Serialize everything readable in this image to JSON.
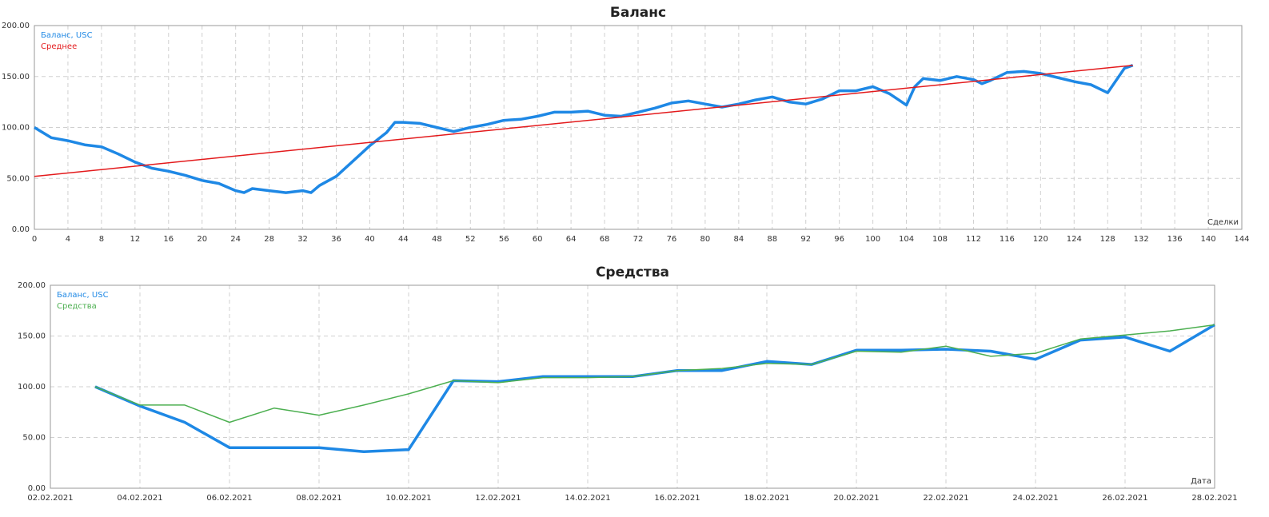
{
  "chart_data": [
    {
      "type": "line",
      "title": "Баланс",
      "x_label": "Сделки",
      "grid": true,
      "legend": "upper left",
      "xlim": [
        0,
        144
      ],
      "xticks": [
        0,
        4,
        8,
        12,
        16,
        20,
        24,
        28,
        32,
        36,
        40,
        44,
        48,
        52,
        56,
        60,
        64,
        68,
        72,
        76,
        80,
        84,
        88,
        92,
        96,
        100,
        104,
        108,
        112,
        116,
        120,
        124,
        128,
        132,
        136,
        140,
        144
      ],
      "ylim": [
        0,
        200
      ],
      "yticks": [
        {
          "value": 0,
          "label": "0.00"
        },
        {
          "value": 50,
          "label": "50.00"
        },
        {
          "value": 100,
          "label": "100.00"
        },
        {
          "value": 150,
          "label": "150.00"
        },
        {
          "value": 200,
          "label": "200.00"
        }
      ],
      "series": [
        {
          "name": "Баланс, USC",
          "color": "#1e88e5",
          "width": 3.5,
          "x": [
            0,
            1,
            2,
            4,
            6,
            8,
            10,
            12,
            14,
            16,
            18,
            20,
            22,
            24,
            25,
            26,
            28,
            30,
            32,
            33,
            34,
            36,
            38,
            40,
            42,
            43,
            44,
            46,
            48,
            50,
            52,
            54,
            56,
            58,
            60,
            62,
            64,
            66,
            68,
            70,
            72,
            74,
            76,
            78,
            80,
            82,
            84,
            86,
            88,
            90,
            92,
            94,
            96,
            98,
            100,
            102,
            104,
            105,
            106,
            108,
            110,
            112,
            113,
            114,
            116,
            118,
            120,
            122,
            124,
            126,
            128,
            130,
            131
          ],
          "values": [
            100,
            95,
            90,
            87,
            83,
            81,
            74,
            66,
            60,
            57,
            53,
            48,
            45,
            38,
            36,
            40,
            38,
            36,
            38,
            36,
            43,
            52,
            67,
            82,
            95,
            105,
            105,
            104,
            100,
            96,
            100,
            103,
            107,
            108,
            111,
            115,
            115,
            116,
            112,
            111,
            115,
            119,
            124,
            126,
            123,
            120,
            123,
            127,
            130,
            125,
            123,
            128,
            136,
            136,
            140,
            133,
            122,
            140,
            148,
            146,
            150,
            147,
            143,
            146,
            154,
            155,
            153,
            149,
            145,
            142,
            134,
            158,
            161
          ]
        },
        {
          "name": "Среднее",
          "color": "#e31a1c",
          "width": 1.5,
          "x": [
            0,
            131
          ],
          "values": [
            52,
            161
          ]
        }
      ]
    },
    {
      "type": "line",
      "title": "Средства",
      "x_label": "Дата",
      "grid": true,
      "legend": "upper left",
      "xlim": [
        "2021-02-02",
        "2021-02-28"
      ],
      "xticks": [
        {
          "value": "2021-02-02",
          "label": "02.02.2021"
        },
        {
          "value": "2021-02-04",
          "label": "04.02.2021"
        },
        {
          "value": "2021-02-06",
          "label": "06.02.2021"
        },
        {
          "value": "2021-02-08",
          "label": "08.02.2021"
        },
        {
          "value": "2021-02-10",
          "label": "10.02.2021"
        },
        {
          "value": "2021-02-12",
          "label": "12.02.2021"
        },
        {
          "value": "2021-02-14",
          "label": "14.02.2021"
        },
        {
          "value": "2021-02-16",
          "label": "16.02.2021"
        },
        {
          "value": "2021-02-18",
          "label": "18.02.2021"
        },
        {
          "value": "2021-02-20",
          "label": "20.02.2021"
        },
        {
          "value": "2021-02-22",
          "label": "22.02.2021"
        },
        {
          "value": "2021-02-24",
          "label": "24.02.2021"
        },
        {
          "value": "2021-02-26",
          "label": "26.02.2021"
        },
        {
          "value": "2021-02-28",
          "label": "28.02.2021"
        }
      ],
      "ylim": [
        0,
        200
      ],
      "yticks": [
        {
          "value": 0,
          "label": "0.00"
        },
        {
          "value": 50,
          "label": "50.00"
        },
        {
          "value": 100,
          "label": "100.00"
        },
        {
          "value": 150,
          "label": "150.00"
        },
        {
          "value": 200,
          "label": "200.00"
        }
      ],
      "x": [
        "2021-02-03",
        "2021-02-04",
        "2021-02-05",
        "2021-02-06",
        "2021-02-07",
        "2021-02-08",
        "2021-02-09",
        "2021-02-10",
        "2021-02-11",
        "2021-02-12",
        "2021-02-13",
        "2021-02-14",
        "2021-02-15",
        "2021-02-16",
        "2021-02-17",
        "2021-02-18",
        "2021-02-19",
        "2021-02-20",
        "2021-02-21",
        "2021-02-22",
        "2021-02-23",
        "2021-02-24",
        "2021-02-25",
        "2021-02-26",
        "2021-02-27",
        "2021-02-28"
      ],
      "series": [
        {
          "name": "Баланс, USC",
          "color": "#1e88e5",
          "width": 3.5,
          "values": [
            100,
            81,
            65,
            40,
            40,
            40,
            36,
            38,
            106,
            105,
            110,
            110,
            110,
            116,
            116,
            125,
            122,
            136,
            136,
            137,
            135,
            127,
            146,
            149,
            135,
            161
          ]
        },
        {
          "name": "Средства",
          "color": "#4caf50",
          "width": 1.5,
          "values": [
            100,
            82,
            82,
            65,
            79,
            72,
            82,
            93,
            106,
            104,
            109,
            109,
            110,
            116,
            118,
            123,
            122,
            135,
            134,
            140,
            130,
            133,
            147,
            151,
            155,
            161
          ]
        }
      ]
    }
  ]
}
